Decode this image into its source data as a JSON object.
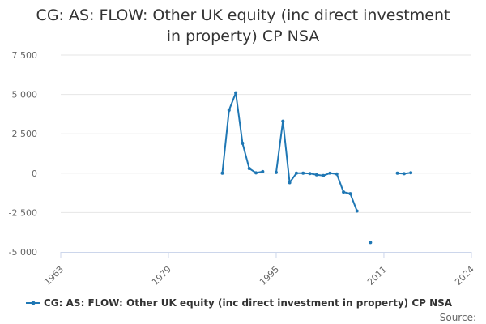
{
  "chart_data": {
    "type": "line",
    "title": "CG: AS: FLOW: Other UK equity (inc direct investment in property) CP NSA",
    "xlabel": "",
    "ylabel": "",
    "xlim": [
      1963,
      2024
    ],
    "ylim": [
      -5000,
      7500
    ],
    "x_ticks": [
      "1963",
      "1979",
      "1995",
      "2011",
      "2024"
    ],
    "y_ticks": [
      "7 500",
      "5 000",
      "2 500",
      "0",
      "-2 500",
      "-5 000"
    ],
    "grid": "horizontal",
    "legend_position": "bottom",
    "series": [
      {
        "name": "CG: AS: FLOW: Other UK equity (inc direct investment in property) CP NSA",
        "color": "#1f77b4",
        "points": [
          [
            1987,
            0
          ],
          [
            1988,
            4000
          ],
          [
            1989,
            5100
          ],
          [
            1990,
            1900
          ],
          [
            1991,
            300
          ],
          [
            1992,
            20
          ],
          [
            1993,
            100
          ],
          [
            1995,
            50
          ],
          [
            1996,
            3300
          ],
          [
            1997,
            -600
          ],
          [
            1998,
            0
          ],
          [
            1999,
            0
          ],
          [
            2000,
            -20
          ],
          [
            2001,
            -100
          ],
          [
            2002,
            -150
          ],
          [
            2003,
            0
          ],
          [
            2004,
            -50
          ],
          [
            2005,
            -1200
          ],
          [
            2006,
            -1300
          ],
          [
            2007,
            -2400
          ],
          [
            2009,
            -4400
          ],
          [
            2013,
            0
          ],
          [
            2014,
            -30
          ],
          [
            2015,
            30
          ]
        ]
      }
    ]
  },
  "legend": {
    "label": "CG: AS: FLOW: Other UK equity (inc direct investment in property) CP NSA"
  },
  "credits": {
    "label": "Source:"
  }
}
